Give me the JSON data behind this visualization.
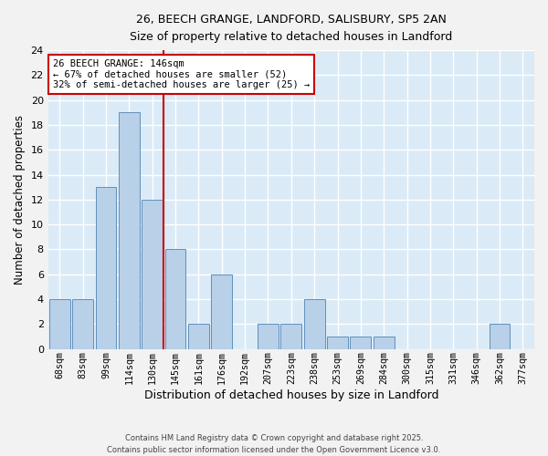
{
  "title1": "26, BEECH GRANGE, LANDFORD, SALISBURY, SP5 2AN",
  "title2": "Size of property relative to detached houses in Landford",
  "xlabel": "Distribution of detached houses by size in Landford",
  "ylabel": "Number of detached properties",
  "categories": [
    "68sqm",
    "83sqm",
    "99sqm",
    "114sqm",
    "130sqm",
    "145sqm",
    "161sqm",
    "176sqm",
    "192sqm",
    "207sqm",
    "223sqm",
    "238sqm",
    "253sqm",
    "269sqm",
    "284sqm",
    "300sqm",
    "315sqm",
    "331sqm",
    "346sqm",
    "362sqm",
    "377sqm"
  ],
  "values": [
    4,
    4,
    13,
    19,
    12,
    8,
    2,
    6,
    0,
    2,
    2,
    4,
    1,
    1,
    1,
    0,
    0,
    0,
    0,
    2,
    0
  ],
  "bar_color": "#b8d0e8",
  "bar_edge_color": "#6090bb",
  "property_line_color": "#cc0000",
  "annotation_text": "26 BEECH GRANGE: 146sqm\n← 67% of detached houses are smaller (52)\n32% of semi-detached houses are larger (25) →",
  "annotation_box_color": "#ffffff",
  "annotation_box_edge_color": "#cc0000",
  "ylim": [
    0,
    24
  ],
  "yticks": [
    0,
    2,
    4,
    6,
    8,
    10,
    12,
    14,
    16,
    18,
    20,
    22,
    24
  ],
  "background_color": "#daeaf6",
  "grid_color": "#ffffff",
  "fig_background": "#f2f2f2",
  "footer": "Contains HM Land Registry data © Crown copyright and database right 2025.\nContains public sector information licensed under the Open Government Licence v3.0."
}
